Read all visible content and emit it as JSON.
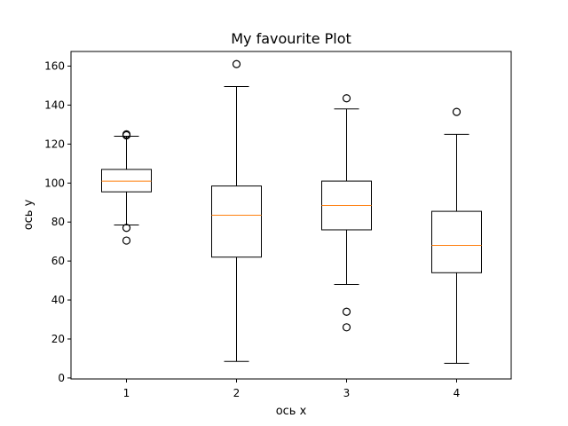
{
  "chart_data": {
    "type": "box",
    "title": "My favourite Plot",
    "xlabel": "ось x",
    "ylabel": "ось y",
    "categories": [
      "1",
      "2",
      "3",
      "4"
    ],
    "yticks": [
      "0",
      "20",
      "40",
      "60",
      "80",
      "100",
      "120",
      "140",
      "160"
    ],
    "ylim": [
      -0.5,
      167.5
    ],
    "grid": false,
    "boxes": [
      {
        "category": "1",
        "whisker_low": 78.5,
        "q1": 95.5,
        "median": 101,
        "q3": 107,
        "whisker_high": 124,
        "outliers": [
          70.5,
          77,
          124.5,
          125
        ]
      },
      {
        "category": "2",
        "whisker_low": 8.5,
        "q1": 62,
        "median": 83.5,
        "q3": 98.5,
        "whisker_high": 149.5,
        "outliers": [
          161
        ]
      },
      {
        "category": "3",
        "whisker_low": 48,
        "q1": 76,
        "median": 88.5,
        "q3": 101,
        "whisker_high": 138,
        "outliers": [
          26,
          34,
          143.5
        ]
      },
      {
        "category": "4",
        "whisker_low": 7.5,
        "q1": 54,
        "median": 68,
        "q3": 85.5,
        "whisker_high": 125,
        "outliers": [
          136.5
        ]
      }
    ],
    "colors": {
      "box": "#000000",
      "median": "#ff7f0e"
    }
  }
}
